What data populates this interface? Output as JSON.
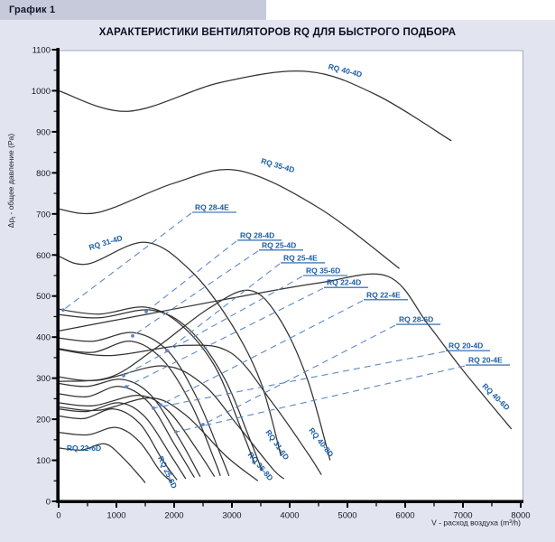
{
  "page": {
    "header": "График 1",
    "title": "ХАРАКТЕРИСТИКИ ВЕНТИЛЯТОРОВ RQ ДЛЯ БЫСТРОГО ПОДБОРА"
  },
  "colors": {
    "page_bg": "#e2e5f0",
    "header_bg": "#c6cadb",
    "plot_bg": "#ffffff",
    "plot_border": "#a3a9c2",
    "axis": "#000000",
    "curve": "#333333",
    "label_blue": "#1b5ea6",
    "leader_blue": "#5d87c6",
    "tick_text": "#16161e"
  },
  "chart_data": {
    "type": "line",
    "title": "ХАРАКТЕРИСТИКИ ВЕНТИЛЯТОРОВ RQ ДЛЯ БЫСТРОГО ПОДБОРА",
    "xlabel": "V - расход воздуха (m³/h)",
    "ylabel_pre": "Δp",
    "ylabel_sub": "t",
    "ylabel_post": " - общее давление (Pa)",
    "xlim": [
      0,
      8000
    ],
    "ylim": [
      0,
      1100
    ],
    "x_major_ticks": [
      0,
      1000,
      2000,
      3000,
      4000,
      5000,
      6000,
      7000,
      8000
    ],
    "y_major_ticks": [
      0,
      100,
      200,
      300,
      400,
      500,
      600,
      700,
      800,
      900,
      1000,
      1100
    ],
    "x_minor_step": 500,
    "y_minor_step": 50,
    "grid": false,
    "legend": "labels-on-curves",
    "series": [
      {
        "name": "RQ 40-4D",
        "points": [
          [
            0,
            1000
          ],
          [
            1200,
            950
          ],
          [
            2800,
            1020
          ],
          [
            4300,
            1047
          ],
          [
            5500,
            990
          ],
          [
            6800,
            878
          ]
        ],
        "label": {
          "mode": "curve",
          "x": 4950,
          "y": 1043,
          "rot": 14
        }
      },
      {
        "name": "RQ 35-4D",
        "points": [
          [
            0,
            712
          ],
          [
            700,
            704
          ],
          [
            2000,
            775
          ],
          [
            3100,
            806
          ],
          [
            4500,
            715
          ],
          [
            5900,
            567
          ]
        ],
        "label": {
          "mode": "curve",
          "x": 3781,
          "y": 812,
          "rot": 16
        }
      },
      {
        "name": "RQ 31-4D",
        "points": [
          [
            0,
            597
          ],
          [
            500,
            578
          ],
          [
            1500,
            631
          ],
          [
            2300,
            560
          ],
          [
            3000,
            430
          ],
          [
            3500,
            290
          ],
          [
            3850,
            110
          ]
        ],
        "label": {
          "mode": "curve",
          "x": 828,
          "y": 624,
          "rot": -17
        }
      },
      {
        "name": "RQ 28-4E",
        "points": [
          [
            0,
            468
          ],
          [
            700,
            456
          ],
          [
            1500,
            473
          ],
          [
            2100,
            432
          ],
          [
            2700,
            330
          ],
          [
            3150,
            180
          ],
          [
            3400,
            90
          ]
        ],
        "label": {
          "mode": "leader",
          "ax": 2313,
          "ay": 704,
          "dx": 78,
          "dy": 466
        }
      },
      {
        "name": "RQ 28-4D",
        "points": [
          [
            0,
            455
          ],
          [
            700,
            447
          ],
          [
            1600,
            466
          ],
          [
            2250,
            420
          ],
          [
            2850,
            305
          ],
          [
            3300,
            155
          ],
          [
            3520,
            75
          ]
        ],
        "label": {
          "mode": "leader",
          "ax": 3094,
          "ay": 636,
          "dx": 1516,
          "dy": 462
        }
      },
      {
        "name": "RQ 25-4D",
        "points": [
          [
            0,
            398
          ],
          [
            600,
            390
          ],
          [
            1300,
            411
          ],
          [
            1900,
            365
          ],
          [
            2400,
            250
          ],
          [
            2800,
            115
          ],
          [
            2950,
            62
          ]
        ],
        "label": {
          "mode": "leader",
          "ax": 3469,
          "ay": 612,
          "dx": 1281,
          "dy": 403
        }
      },
      {
        "name": "RQ 25-4E",
        "points": [
          [
            0,
            372
          ],
          [
            600,
            363
          ],
          [
            1250,
            390
          ],
          [
            1800,
            345
          ],
          [
            2300,
            235
          ],
          [
            2700,
            100
          ],
          [
            2800,
            62
          ]
        ],
        "label": {
          "mode": "leader",
          "ax": 3844,
          "ay": 581,
          "dx": 1875,
          "dy": 367
        }
      },
      {
        "name": "RQ 35-6D",
        "points": [
          [
            0,
            292
          ],
          [
            900,
            303
          ],
          [
            1700,
            375
          ],
          [
            2600,
            470
          ],
          [
            3300,
            514
          ],
          [
            3800,
            450
          ],
          [
            4300,
            300
          ],
          [
            4700,
            100
          ]
        ],
        "label": {
          "mode": "leader",
          "ax": 4234,
          "ay": 550,
          "dx": 1125,
          "dy": 306
        }
      },
      {
        "name": "RQ 22-4D",
        "points": [
          [
            0,
            287
          ],
          [
            500,
            280
          ],
          [
            1100,
            297
          ],
          [
            1600,
            258
          ],
          [
            2100,
            150
          ],
          [
            2450,
            60
          ]
        ],
        "label": {
          "mode": "leader",
          "ax": 4594,
          "ay": 521,
          "dx": 1172,
          "dy": 279
        }
      },
      {
        "name": "RQ 22-4E",
        "points": [
          [
            0,
            262
          ],
          [
            500,
            255
          ],
          [
            1050,
            280
          ],
          [
            1550,
            242
          ],
          [
            2000,
            140
          ],
          [
            2350,
            58
          ]
        ],
        "label": {
          "mode": "leader",
          "ax": 5281,
          "ay": 491,
          "dx": 1766,
          "dy": 235
        }
      },
      {
        "name": "RQ 28-6D",
        "points": [
          [
            0,
            240
          ],
          [
            600,
            233
          ],
          [
            1400,
            258
          ],
          [
            1900,
            220
          ],
          [
            2400,
            125
          ],
          [
            2700,
            60
          ]
        ],
        "label": {
          "mode": "leader",
          "ax": 5844,
          "ay": 431,
          "dx": 2500,
          "dy": 187
        }
      },
      {
        "name": "RQ 20-4D",
        "points": [
          [
            0,
            225
          ],
          [
            500,
            219
          ],
          [
            1050,
            240
          ],
          [
            1500,
            205
          ],
          [
            1950,
            110
          ],
          [
            2200,
            55
          ]
        ],
        "label": {
          "mode": "leader",
          "ax": 6703,
          "ay": 367,
          "dx": 1641,
          "dy": 227
        }
      },
      {
        "name": "RQ 20-4E",
        "points": [
          [
            0,
            208
          ],
          [
            450,
            202
          ],
          [
            950,
            225
          ],
          [
            1400,
            190
          ],
          [
            1800,
            100
          ],
          [
            2050,
            52
          ]
        ],
        "label": {
          "mode": "leader",
          "ax": 7047,
          "ay": 332,
          "dx": 2031,
          "dy": 169
        }
      },
      {
        "name": "RQ 40-6D",
        "points": [
          [
            0,
            415
          ],
          [
            1500,
            455
          ],
          [
            3000,
            495
          ],
          [
            4500,
            532
          ],
          [
            5700,
            548
          ],
          [
            6400,
            430
          ],
          [
            7000,
            319
          ],
          [
            7840,
            176
          ]
        ],
        "label": {
          "mode": "curve",
          "x": 7540,
          "y": 250,
          "rot": 44
        }
      },
      {
        "name": "RQ 40-8D",
        "points": [
          [
            0,
            370
          ],
          [
            900,
            355
          ],
          [
            2200,
            380
          ],
          [
            3000,
            360
          ],
          [
            3700,
            240
          ],
          [
            4300,
            120
          ],
          [
            4550,
            65
          ]
        ],
        "label": {
          "mode": "curve",
          "x": 4510,
          "y": 140,
          "rot": 52
        }
      },
      {
        "name": "RQ 31-6D",
        "points": [
          [
            0,
            303
          ],
          [
            700,
            295
          ],
          [
            1800,
            330
          ],
          [
            2500,
            285
          ],
          [
            3100,
            185
          ],
          [
            3700,
            80
          ],
          [
            3900,
            55
          ]
        ],
        "label": {
          "mode": "curve",
          "x": 3750,
          "y": 134,
          "rot": 55
        }
      },
      {
        "name": "RQ 35-8D",
        "points": [
          [
            0,
            230
          ],
          [
            700,
            222
          ],
          [
            1600,
            252
          ],
          [
            2200,
            210
          ],
          [
            2900,
            110
          ],
          [
            3450,
            50
          ]
        ],
        "label": {
          "mode": "curve",
          "x": 3460,
          "y": 81,
          "rot": 50
        }
      },
      {
        "name": "RQ 25-6D",
        "points": [
          [
            0,
            168
          ],
          [
            500,
            162
          ],
          [
            1000,
            180
          ],
          [
            1400,
            145
          ],
          [
            1750,
            75
          ],
          [
            1950,
            48
          ]
        ],
        "label": {
          "mode": "curve",
          "x": 1844,
          "y": 68,
          "rot": 65
        }
      },
      {
        "name": "RQ 22-6D",
        "points": [
          [
            0,
            130
          ],
          [
            400,
            125
          ],
          [
            800,
            140
          ],
          [
            1100,
            108
          ],
          [
            1400,
            62
          ],
          [
            1500,
            45
          ]
        ],
        "label": {
          "mode": "curve",
          "x": 437,
          "y": 123,
          "rot": 0
        }
      }
    ]
  }
}
